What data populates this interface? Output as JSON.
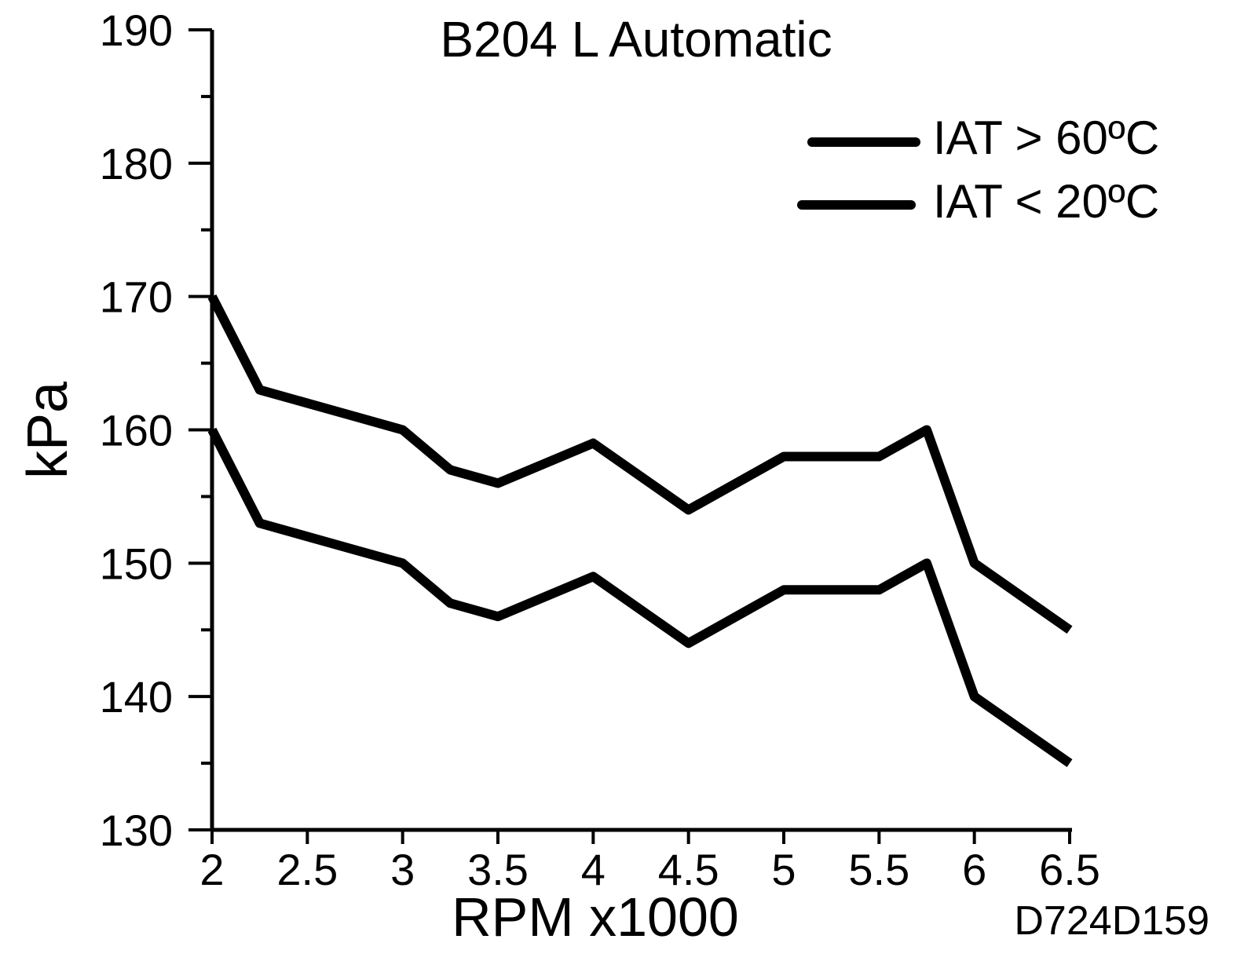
{
  "chart_data": {
    "type": "line",
    "title": "B204 L Automatic",
    "xlabel": "RPM x1000",
    "ylabel": "kPa",
    "figure_id": "D724D159",
    "xlim": [
      2,
      6.5
    ],
    "ylim": [
      130,
      190
    ],
    "x_ticks": [
      "2",
      "2.5",
      "3",
      "3.5",
      "4",
      "4.5",
      "5",
      "5.5",
      "6",
      "6.5"
    ],
    "y_ticks": [
      "130",
      "140",
      "150",
      "160",
      "170",
      "180",
      "190"
    ],
    "grid": false,
    "legend_position": "top-right",
    "series": [
      {
        "name": "IAT > 60ºC",
        "color": "#000000",
        "points": [
          [
            2,
            170
          ],
          [
            2.25,
            163
          ],
          [
            2.75,
            161
          ],
          [
            3,
            160
          ],
          [
            3.25,
            157
          ],
          [
            3.5,
            156
          ],
          [
            4,
            159
          ],
          [
            4.5,
            154
          ],
          [
            5,
            158
          ],
          [
            5.5,
            158
          ],
          [
            5.75,
            160
          ],
          [
            6,
            150
          ],
          [
            6.5,
            145
          ]
        ]
      },
      {
        "name": "IAT < 20ºC",
        "color": "#000000",
        "points": [
          [
            2,
            160
          ],
          [
            2.25,
            153
          ],
          [
            2.75,
            151
          ],
          [
            3,
            150
          ],
          [
            3.25,
            147
          ],
          [
            3.5,
            146
          ],
          [
            4,
            149
          ],
          [
            4.5,
            144
          ],
          [
            5,
            148
          ],
          [
            5.5,
            148
          ],
          [
            5.75,
            150
          ],
          [
            6,
            140
          ],
          [
            6.5,
            135
          ]
        ]
      }
    ]
  }
}
